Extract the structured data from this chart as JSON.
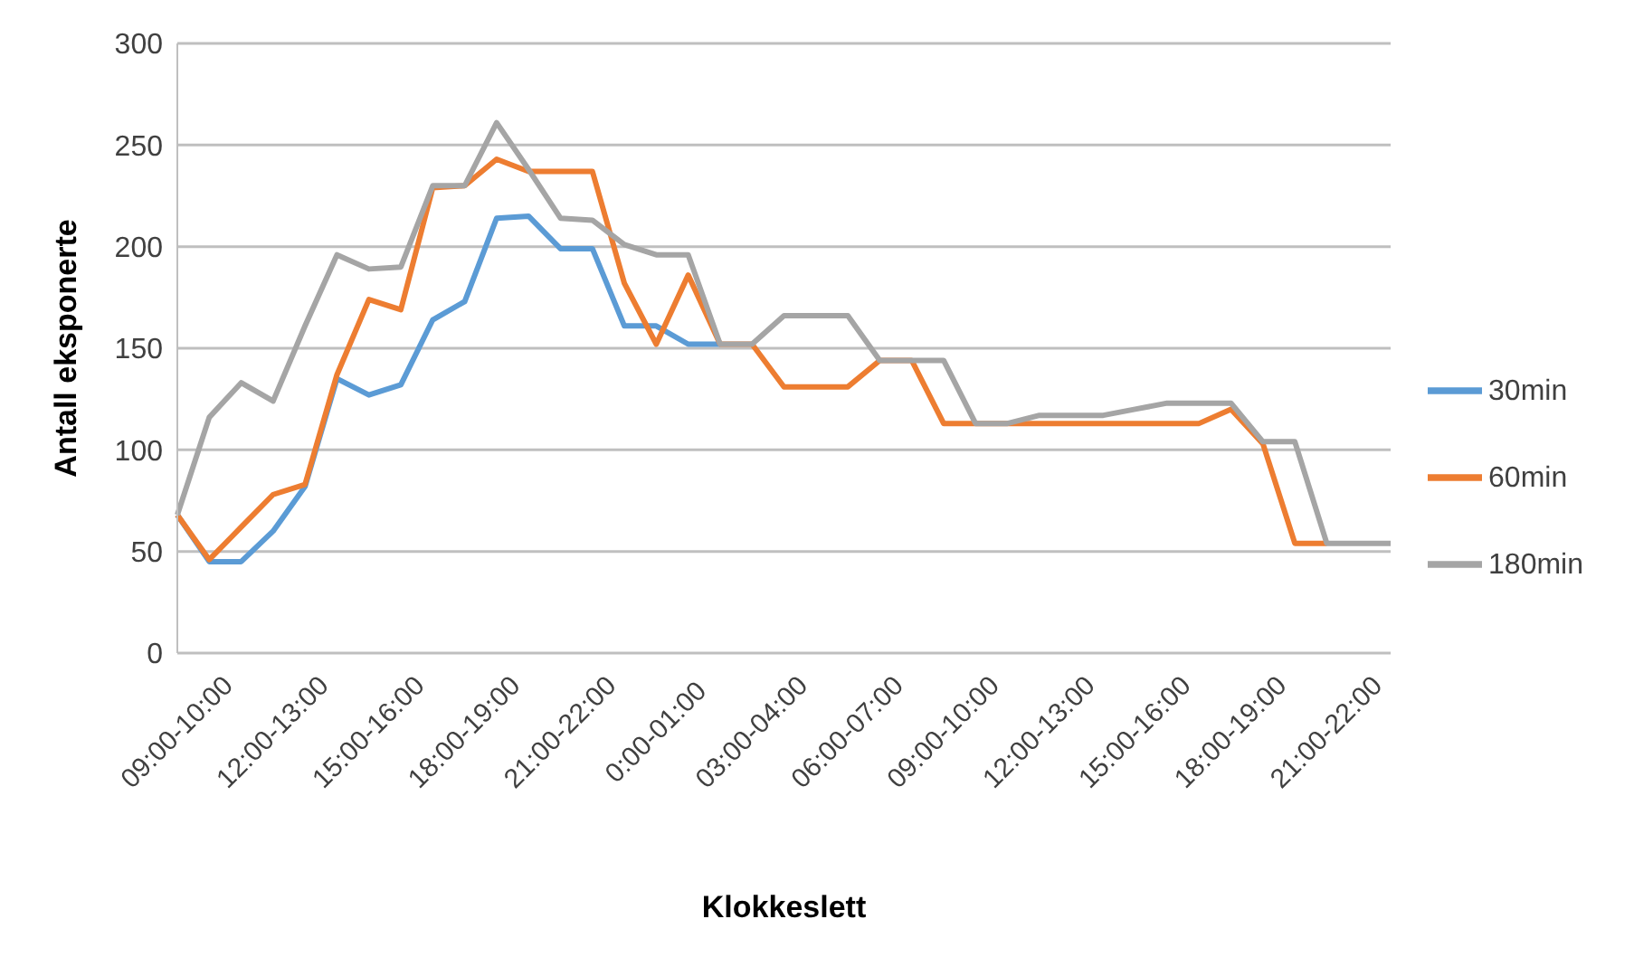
{
  "chart_data": {
    "type": "line",
    "xlabel": "Klokkeslett",
    "ylabel": "Antall eksponerte",
    "categories": [
      "09:00-10:00",
      null,
      null,
      "12:00-13:00",
      null,
      null,
      "15:00-16:00",
      null,
      null,
      "18:00-19:00",
      null,
      null,
      "21:00-22:00",
      null,
      null,
      "0:00-01:00",
      null,
      null,
      "03:00-04:00",
      null,
      null,
      "06:00-07:00",
      null,
      null,
      "09:00-10:00",
      null,
      null,
      "12:00-13:00",
      null,
      null,
      "15:00-16:00",
      null,
      null,
      "18:00-19:00",
      null,
      null,
      "21:00-22:00",
      null,
      null
    ],
    "series": [
      {
        "name": "30min",
        "color": "#5b9bd5",
        "values": [
          68,
          45,
          45,
          60,
          82,
          135,
          127,
          132,
          164,
          173,
          214,
          215,
          199,
          199,
          161,
          161,
          152,
          152,
          null,
          null,
          null,
          null,
          null,
          null,
          null,
          null,
          null,
          null,
          null,
          null,
          null,
          null,
          null,
          null,
          null,
          null,
          null,
          null,
          null
        ]
      },
      {
        "name": "60min",
        "color": "#ed7d31",
        "values": [
          68,
          46,
          62,
          78,
          83,
          137,
          174,
          169,
          229,
          230,
          243,
          237,
          237,
          237,
          182,
          152,
          186,
          152,
          152,
          131,
          131,
          131,
          144,
          144,
          113,
          113,
          113,
          113,
          113,
          113,
          113,
          113,
          113,
          120,
          103,
          54,
          54,
          null,
          null
        ]
      },
      {
        "name": "180min",
        "color": "#a5a5a5",
        "values": [
          68,
          116,
          133,
          124,
          161,
          196,
          189,
          190,
          230,
          230,
          261,
          238,
          214,
          213,
          201,
          196,
          196,
          152,
          152,
          166,
          166,
          166,
          144,
          144,
          144,
          113,
          113,
          117,
          117,
          117,
          120,
          123,
          123,
          123,
          104,
          104,
          54,
          54,
          54
        ]
      }
    ],
    "ylim": [
      0,
      300
    ],
    "yticks": [
      0,
      50,
      100,
      150,
      200,
      250,
      300
    ],
    "grid": "y",
    "legend": "right",
    "marker": "none",
    "line_style": "solid"
  }
}
